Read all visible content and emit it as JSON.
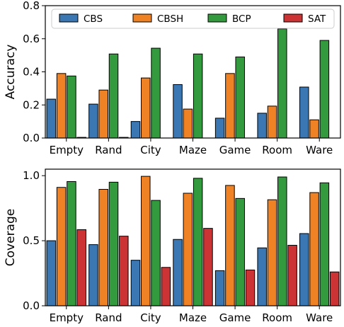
{
  "chart_data": [
    {
      "type": "bar",
      "ylabel": "Accuracy",
      "xlabel": "",
      "title": "",
      "ylim": [
        0,
        0.8
      ],
      "yticks": [
        "0.0",
        "0.2",
        "0.4",
        "0.6",
        "0.8"
      ],
      "ytick_values": [
        0,
        0.2,
        0.4,
        0.6,
        0.8
      ],
      "categories": [
        "Empty",
        "Rand",
        "City",
        "Maze",
        "Game",
        "Room",
        "Ware"
      ],
      "series": [
        {
          "name": "CBS",
          "color": "#3a77b3",
          "values": [
            0.235,
            0.205,
            0.1,
            0.323,
            0.12,
            0.15,
            0.308
          ]
        },
        {
          "name": "CBSH",
          "color": "#ef8224",
          "values": [
            0.39,
            0.29,
            0.363,
            0.175,
            0.39,
            0.193,
            0.11
          ]
        },
        {
          "name": "BCP",
          "color": "#339b3d",
          "values": [
            0.375,
            0.508,
            0.543,
            0.508,
            0.49,
            0.66,
            0.59
          ]
        },
        {
          "name": "SAT",
          "color": "#cb3334",
          "values": [
            0.004,
            0.004,
            0.0,
            0.0,
            0.0,
            0.0,
            0.0
          ]
        }
      ],
      "legend": "top"
    },
    {
      "type": "bar",
      "ylabel": "Coverage",
      "xlabel": "",
      "title": "",
      "ylim": [
        0,
        1.05
      ],
      "yticks": [
        "0.0",
        "0.5",
        "1.0"
      ],
      "ytick_values": [
        0,
        0.5,
        1.0
      ],
      "categories": [
        "Empty",
        "Rand",
        "City",
        "Maze",
        "Game",
        "Room",
        "Ware"
      ],
      "series": [
        {
          "name": "CBS",
          "color": "#3a77b3",
          "values": [
            0.5,
            0.47,
            0.35,
            0.51,
            0.27,
            0.445,
            0.555
          ]
        },
        {
          "name": "CBSH",
          "color": "#ef8224",
          "values": [
            0.91,
            0.895,
            0.995,
            0.865,
            0.925,
            0.815,
            0.87
          ]
        },
        {
          "name": "BCP",
          "color": "#339b3d",
          "values": [
            0.955,
            0.95,
            0.81,
            0.98,
            0.825,
            0.99,
            0.945
          ]
        },
        {
          "name": "SAT",
          "color": "#cb3334",
          "values": [
            0.585,
            0.535,
            0.295,
            0.595,
            0.275,
            0.465,
            0.26
          ]
        }
      ]
    }
  ]
}
